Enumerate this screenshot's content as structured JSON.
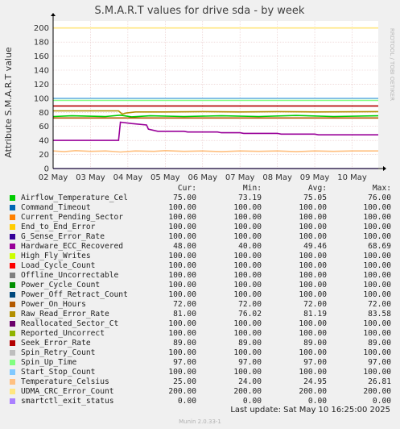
{
  "chart_data": {
    "type": "line",
    "title": "S.M.A.R.T values for drive sda - by week",
    "ylabel": "Attribute S.M.A.R.T value",
    "side_label": "RRDTOOL / TOBI OETIKER",
    "ylim": [
      0,
      210
    ],
    "yticks": [
      0,
      20,
      40,
      60,
      80,
      100,
      120,
      140,
      160,
      180,
      200
    ],
    "xlim": [
      0,
      8.7
    ],
    "xticks": [
      {
        "x": 0,
        "label": "02 May"
      },
      {
        "x": 1,
        "label": "03 May"
      },
      {
        "x": 2,
        "label": "04 May"
      },
      {
        "x": 3,
        "label": "05 May"
      },
      {
        "x": 4,
        "label": "06 May"
      },
      {
        "x": 5,
        "label": "07 May"
      },
      {
        "x": 6,
        "label": "08 May"
      },
      {
        "x": 7,
        "label": "09 May"
      },
      {
        "x": 8,
        "label": "10 May"
      }
    ],
    "grid": true,
    "legend_headers": {
      "cur": "Cur:",
      "min": "Min:",
      "avg": "Avg:",
      "max": "Max:"
    },
    "series": [
      {
        "name": "Airflow_Temperature_Cel",
        "color": "#00cc00",
        "cur": "75.00",
        "min": "73.19",
        "avg": "75.05",
        "max": "76.00",
        "points": [
          [
            0,
            74
          ],
          [
            0.5,
            75
          ],
          [
            1.4,
            74
          ],
          [
            1.8,
            76
          ],
          [
            2.1,
            73.5
          ],
          [
            2.6,
            75
          ],
          [
            3.5,
            74
          ],
          [
            4.5,
            75
          ],
          [
            5.5,
            74
          ],
          [
            6.5,
            75.5
          ],
          [
            7.5,
            74
          ],
          [
            8.7,
            75
          ]
        ]
      },
      {
        "name": "Command_Timeout",
        "color": "#0066b3",
        "cur": "100.00",
        "min": "100.00",
        "avg": "100.00",
        "max": "100.00",
        "points": [
          [
            0,
            100
          ],
          [
            8.7,
            100
          ]
        ]
      },
      {
        "name": "Current_Pending_Sector",
        "color": "#ff8000",
        "cur": "100.00",
        "min": "100.00",
        "avg": "100.00",
        "max": "100.00",
        "points": [
          [
            0,
            100
          ],
          [
            8.7,
            100
          ]
        ]
      },
      {
        "name": "End_to_End_Error",
        "color": "#ffcc00",
        "cur": "100.00",
        "min": "100.00",
        "avg": "100.00",
        "max": "100.00",
        "points": [
          [
            0,
            100
          ],
          [
            8.7,
            100
          ]
        ]
      },
      {
        "name": "G_Sense_Error_Rate",
        "color": "#330099",
        "cur": "100.00",
        "min": "100.00",
        "avg": "100.00",
        "max": "100.00",
        "points": [
          [
            0,
            100
          ],
          [
            8.7,
            100
          ]
        ]
      },
      {
        "name": "Hardware_ECC_Recovered",
        "color": "#990099",
        "cur": "48.00",
        "min": "40.00",
        "avg": "49.46",
        "max": "68.69",
        "points": [
          [
            0,
            40
          ],
          [
            1.75,
            40
          ],
          [
            1.8,
            66
          ],
          [
            2.1,
            64
          ],
          [
            2.5,
            62
          ],
          [
            2.55,
            56
          ],
          [
            2.8,
            53
          ],
          [
            3.5,
            53
          ],
          [
            3.6,
            52
          ],
          [
            4.4,
            52
          ],
          [
            4.5,
            51
          ],
          [
            5.0,
            51
          ],
          [
            5.1,
            50
          ],
          [
            6.0,
            50
          ],
          [
            6.1,
            49
          ],
          [
            7.0,
            49
          ],
          [
            7.1,
            48
          ],
          [
            8.7,
            48
          ]
        ]
      },
      {
        "name": "High_Fly_Writes",
        "color": "#ccff00",
        "cur": "100.00",
        "min": "100.00",
        "avg": "100.00",
        "max": "100.00",
        "points": [
          [
            0,
            100
          ],
          [
            8.7,
            100
          ]
        ]
      },
      {
        "name": "Load_Cycle_Count",
        "color": "#ff0000",
        "cur": "100.00",
        "min": "100.00",
        "avg": "100.00",
        "max": "100.00",
        "points": [
          [
            0,
            100
          ],
          [
            8.7,
            100
          ]
        ]
      },
      {
        "name": "Offline_Uncorrectable",
        "color": "#808080",
        "cur": "100.00",
        "min": "100.00",
        "avg": "100.00",
        "max": "100.00",
        "points": [
          [
            0,
            100
          ],
          [
            8.7,
            100
          ]
        ]
      },
      {
        "name": "Power_Cycle_Count",
        "color": "#008f00",
        "cur": "100.00",
        "min": "100.00",
        "avg": "100.00",
        "max": "100.00",
        "points": [
          [
            0,
            100
          ],
          [
            8.7,
            100
          ]
        ]
      },
      {
        "name": "Power_Off_Retract_Count",
        "color": "#00487d",
        "cur": "100.00",
        "min": "100.00",
        "avg": "100.00",
        "max": "100.00",
        "points": [
          [
            0,
            100
          ],
          [
            8.7,
            100
          ]
        ]
      },
      {
        "name": "Power_On_Hours",
        "color": "#b35a00",
        "cur": "72.00",
        "min": "72.00",
        "avg": "72.00",
        "max": "72.00",
        "points": [
          [
            0,
            72
          ],
          [
            8.7,
            72
          ]
        ]
      },
      {
        "name": "Raw_Read_Error_Rate",
        "color": "#b38f00",
        "cur": "81.00",
        "min": "76.02",
        "avg": "81.19",
        "max": "83.58",
        "points": [
          [
            0,
            82
          ],
          [
            1.75,
            82
          ],
          [
            1.85,
            77.5
          ],
          [
            1.95,
            79
          ],
          [
            2.2,
            80.5
          ],
          [
            3.0,
            80.5
          ],
          [
            4.0,
            81
          ],
          [
            5.0,
            80.5
          ],
          [
            6.0,
            81
          ],
          [
            7.0,
            80.5
          ],
          [
            8.7,
            81
          ]
        ]
      },
      {
        "name": "Reallocated_Sector_Ct",
        "color": "#6b006b",
        "cur": "100.00",
        "min": "100.00",
        "avg": "100.00",
        "max": "100.00",
        "points": [
          [
            0,
            100
          ],
          [
            8.7,
            100
          ]
        ]
      },
      {
        "name": "Reported_Uncorrect",
        "color": "#8fb300",
        "cur": "100.00",
        "min": "100.00",
        "avg": "100.00",
        "max": "100.00",
        "points": [
          [
            0,
            100
          ],
          [
            8.7,
            100
          ]
        ]
      },
      {
        "name": "Seek_Error_Rate",
        "color": "#b30000",
        "cur": "89.00",
        "min": "89.00",
        "avg": "89.00",
        "max": "89.00",
        "points": [
          [
            0,
            89
          ],
          [
            8.7,
            89
          ]
        ]
      },
      {
        "name": "Spin_Retry_Count",
        "color": "#bebebe",
        "cur": "100.00",
        "min": "100.00",
        "avg": "100.00",
        "max": "100.00",
        "points": [
          [
            0,
            100
          ],
          [
            8.7,
            100
          ]
        ]
      },
      {
        "name": "Spin_Up_Time",
        "color": "#80ff80",
        "cur": "97.00",
        "min": "97.00",
        "avg": "97.00",
        "max": "97.00",
        "points": [
          [
            0,
            97
          ],
          [
            8.7,
            97
          ]
        ]
      },
      {
        "name": "Start_Stop_Count",
        "color": "#80c9ff",
        "cur": "100.00",
        "min": "100.00",
        "avg": "100.00",
        "max": "100.00",
        "points": [
          [
            0,
            100
          ],
          [
            8.7,
            100
          ]
        ]
      },
      {
        "name": "Temperature_Celsius",
        "color": "#ffc080",
        "cur": "25.00",
        "min": "24.00",
        "avg": "24.95",
        "max": "26.81",
        "points": [
          [
            0,
            25
          ],
          [
            0.3,
            24
          ],
          [
            0.6,
            25.5
          ],
          [
            1.0,
            24.5
          ],
          [
            1.4,
            25
          ],
          [
            1.8,
            23.5
          ],
          [
            2.2,
            25
          ],
          [
            2.7,
            24.5
          ],
          [
            3.0,
            25.5
          ],
          [
            3.5,
            24.5
          ],
          [
            4.0,
            25
          ],
          [
            4.5,
            24
          ],
          [
            5.0,
            25
          ],
          [
            5.5,
            24.5
          ],
          [
            6.0,
            25
          ],
          [
            6.5,
            24
          ],
          [
            7.0,
            25
          ],
          [
            7.5,
            24.5
          ],
          [
            8.0,
            25
          ],
          [
            8.7,
            25
          ]
        ]
      },
      {
        "name": "UDMA_CRC_Error_Count",
        "color": "#ffe680",
        "cur": "200.00",
        "min": "200.00",
        "avg": "200.00",
        "max": "200.00",
        "points": [
          [
            0,
            200
          ],
          [
            8.7,
            200
          ]
        ]
      },
      {
        "name": "smartctl_exit_status",
        "color": "#aa80ff",
        "cur": "0.00",
        "min": "0.00",
        "avg": "0.00",
        "max": "0.00",
        "points": [
          [
            0,
            0
          ],
          [
            8.7,
            0
          ]
        ]
      }
    ]
  },
  "footer": {
    "last_update": "Last update:  Sat May 10 16:25:00 2025",
    "munin_version": "Munin 2.0.33-1"
  }
}
